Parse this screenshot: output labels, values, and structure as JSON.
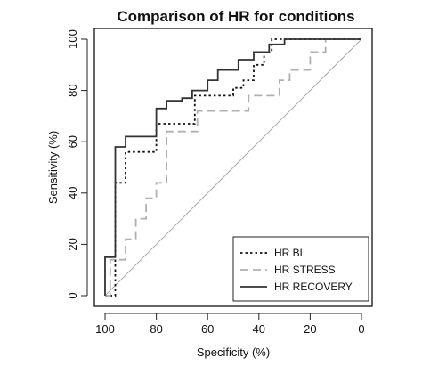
{
  "chart_data": {
    "type": "line",
    "title": "Comparison of HR for conditions",
    "xlabel": "Specificity (%)",
    "ylabel": "Sensitivity (%)",
    "xlim": [
      100,
      0
    ],
    "ylim": [
      0,
      100
    ],
    "x_reversed": true,
    "x_ticks": [
      100,
      80,
      60,
      40,
      20,
      0
    ],
    "y_ticks": [
      0,
      20,
      40,
      60,
      80,
      100
    ],
    "grid": false,
    "legend_position": "bottom-right",
    "diagonal_reference": true,
    "series": [
      {
        "name": "HR BL",
        "color": "#111111",
        "style": "dotted",
        "x": [
          100,
          96,
          96,
          92,
          92,
          88,
          88,
          80,
          80,
          65,
          65,
          50,
          50,
          46,
          46,
          42,
          42,
          38,
          38,
          35,
          35,
          30,
          30,
          0
        ],
        "y": [
          0,
          0,
          44,
          44,
          56,
          56,
          56,
          56,
          67,
          67,
          78,
          78,
          81,
          81,
          84,
          84,
          90,
          90,
          95,
          95,
          100,
          100,
          100,
          100
        ]
      },
      {
        "name": "HR STRESS",
        "color": "#b0b0b0",
        "style": "dashed",
        "x": [
          100,
          98,
          98,
          92,
          92,
          88,
          88,
          84,
          84,
          80,
          80,
          76,
          76,
          64,
          64,
          44,
          44,
          32,
          32,
          28,
          28,
          20,
          20,
          14,
          14,
          0
        ],
        "y": [
          0,
          0,
          14,
          14,
          22,
          22,
          30,
          30,
          38,
          38,
          44,
          44,
          64,
          64,
          72,
          72,
          78,
          78,
          84,
          84,
          88,
          88,
          95,
          95,
          100,
          100
        ]
      },
      {
        "name": "HR RECOVERY",
        "color": "#333333",
        "style": "solid",
        "x": [
          100,
          100,
          96,
          96,
          92,
          92,
          80,
          80,
          76,
          76,
          70,
          70,
          66,
          66,
          60,
          60,
          56,
          56,
          48,
          48,
          42,
          42,
          36,
          36,
          30,
          30,
          24,
          24,
          0
        ],
        "y": [
          0,
          15,
          15,
          58,
          58,
          62,
          62,
          73,
          73,
          76,
          76,
          77,
          77,
          80,
          80,
          84,
          84,
          88,
          88,
          92,
          92,
          95,
          95,
          98,
          98,
          100,
          100,
          100,
          100
        ]
      }
    ]
  }
}
